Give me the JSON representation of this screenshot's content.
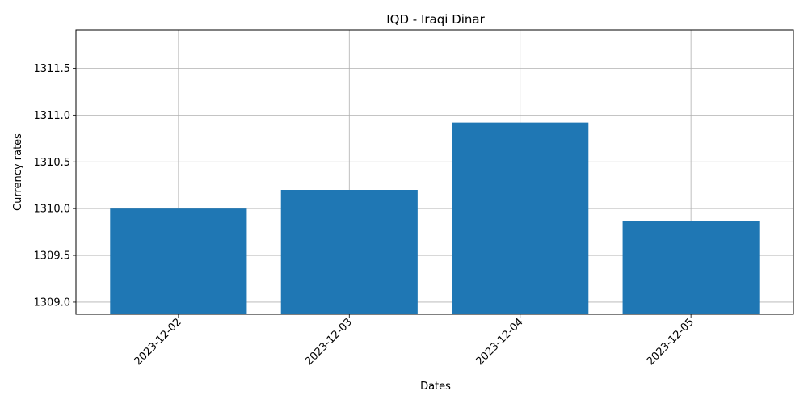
{
  "chart_data": {
    "type": "bar",
    "title": "IQD - Iraqi Dinar",
    "xlabel": "Dates",
    "ylabel": "Currency rates",
    "categories": [
      "2023-12-02",
      "2023-12-03",
      "2023-12-04",
      "2023-12-05"
    ],
    "values": [
      1310.0,
      1310.2,
      1310.92,
      1309.87
    ],
    "ylim": [
      1308.87,
      1311.91
    ],
    "yticks": [
      1309.0,
      1309.5,
      1310.0,
      1310.5,
      1311.0,
      1311.5
    ],
    "ytick_labels": [
      "1309.0",
      "1309.5",
      "1310.0",
      "1310.5",
      "1311.0",
      "1311.5"
    ],
    "grid": true,
    "bar_color": "#1f77b4",
    "xtick_rotation": 45
  }
}
